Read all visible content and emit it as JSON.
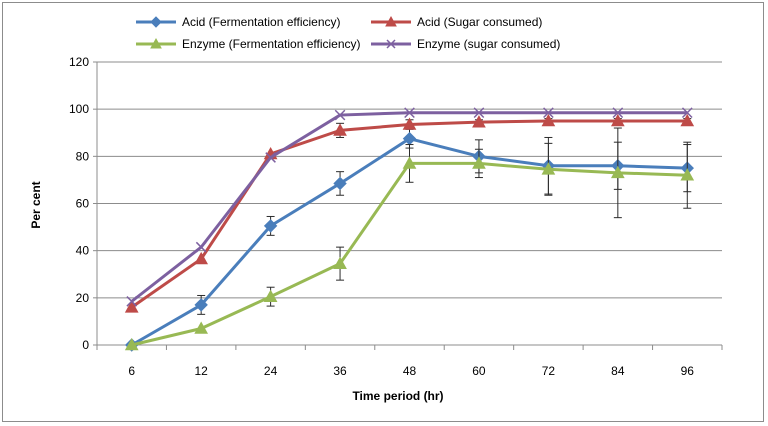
{
  "chart_data": {
    "type": "line",
    "xlabel": "Time period (hr)",
    "ylabel": "Per cent",
    "ylim": [
      0,
      120
    ],
    "yticks": [
      0,
      20,
      40,
      60,
      80,
      100,
      120
    ],
    "categories": [
      "6",
      "12",
      "24",
      "36",
      "48",
      "60",
      "72",
      "84",
      "96"
    ],
    "grid": "horizontal",
    "legend_position": "top",
    "series": [
      {
        "name": "Acid (Fermentation efficiency)",
        "color": "#4a7ebb",
        "marker": "diamond",
        "values": [
          0,
          17,
          50.5,
          68.5,
          87.5,
          80,
          76,
          76,
          75
        ],
        "errors": [
          0,
          4,
          4,
          5,
          4,
          7,
          12,
          10,
          10
        ]
      },
      {
        "name": "Acid (Sugar consumed)",
        "color": "#be4b48",
        "marker": "triangle",
        "values": [
          16,
          36.5,
          81,
          91,
          93.5,
          94.5,
          95,
          95,
          95
        ],
        "errors": [
          0,
          0,
          0,
          3,
          2,
          1,
          1,
          1,
          1
        ]
      },
      {
        "name": "Enzyme (Fermentation efficiency)",
        "color": "#98b954",
        "marker": "triangle",
        "values": [
          0,
          7,
          20.5,
          34.5,
          77,
          77,
          74.5,
          73,
          72
        ],
        "errors": [
          0,
          0,
          4,
          7,
          8,
          6,
          11,
          19,
          14
        ]
      },
      {
        "name": "Enzyme (sugar consumed)",
        "color": "#7d60a0",
        "marker": "x",
        "values": [
          18.5,
          41.5,
          79.5,
          97.5,
          98.5,
          98.5,
          98.5,
          98.5,
          98.5
        ],
        "errors": [
          0,
          0,
          0,
          0,
          0,
          0,
          0,
          0,
          0
        ]
      }
    ]
  }
}
